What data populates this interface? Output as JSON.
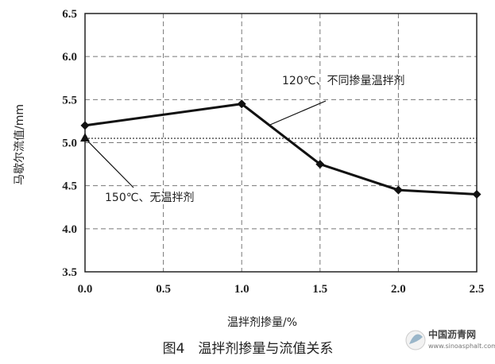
{
  "chart_data": {
    "type": "line",
    "title": "",
    "caption": "图4　温拌剂掺量与流值关系",
    "xlabel": "温拌剂掺量/%",
    "ylabel": "马歇尔流值/mm",
    "xlim": [
      0.0,
      2.5
    ],
    "ylim": [
      3.5,
      6.5
    ],
    "x_ticks": [
      "0.0",
      "0.5",
      "1.0",
      "1.5",
      "2.0",
      "2.5"
    ],
    "y_ticks": [
      "3.5",
      "4.0",
      "4.5",
      "5.0",
      "5.5",
      "6.0",
      "6.5"
    ],
    "grid": true,
    "series": [
      {
        "name": "120℃、不同掺量温拌剂",
        "marker": "diamond",
        "x": [
          0.0,
          1.0,
          1.5,
          2.0,
          2.5
        ],
        "y": [
          5.2,
          5.45,
          4.75,
          4.45,
          4.4
        ]
      },
      {
        "name": "150℃、无温拌剂",
        "marker": "triangle",
        "style": "dotted-reference",
        "x": [
          0.0
        ],
        "y": [
          5.05
        ]
      }
    ],
    "annotations": [
      {
        "text": "120℃、不同掺量温拌剂"
      },
      {
        "text": "150℃、无温拌剂"
      }
    ]
  },
  "watermark": {
    "name": "中国沥青网",
    "url": "www.sinoasphalt.com"
  }
}
